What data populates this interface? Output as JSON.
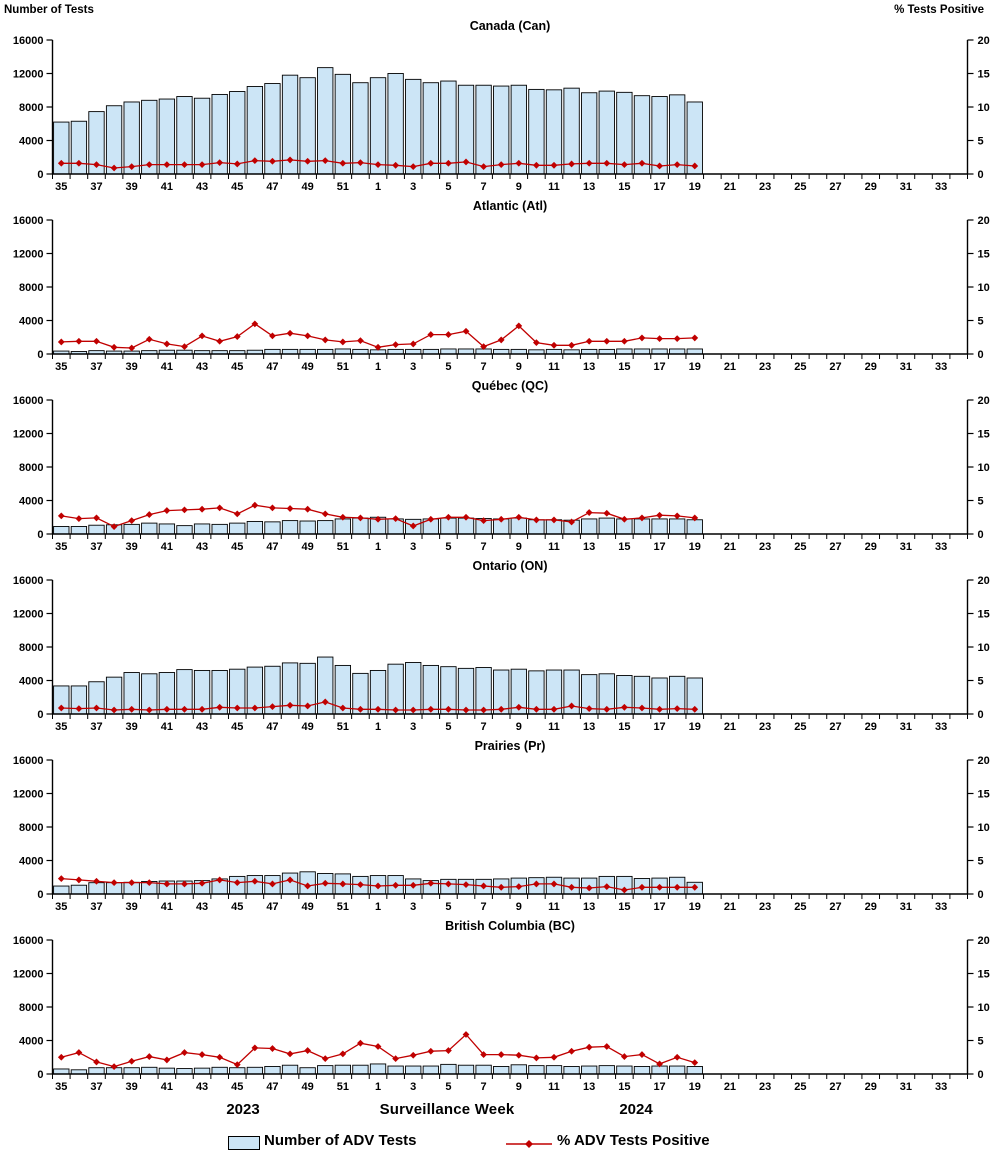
{
  "header": {
    "left_axis_title": "Number of Tests",
    "right_axis_title": "% Tests Positive"
  },
  "footer": {
    "year_left": "2023",
    "x_axis_title": "Surveillance Week",
    "year_right": "2024"
  },
  "legend": {
    "bar_label": "Number of ADV Tests",
    "line_label": "% ADV Tests Positive"
  },
  "colors": {
    "bar_fill": "#CCE5F6",
    "bar_border": "#000000",
    "line": "#C00000",
    "axis": "#000000",
    "text": "#000000"
  },
  "chart_data": {
    "type": "bar+line multi-panel",
    "x_axis_note": "Surveillance weeks 35-52 of 2023 followed by weeks 1-34 of 2024; data reported through 2024 week 19",
    "categories_weeks": [
      35,
      36,
      37,
      38,
      39,
      40,
      41,
      42,
      43,
      44,
      45,
      46,
      47,
      48,
      49,
      50,
      51,
      52,
      1,
      2,
      3,
      4,
      5,
      6,
      7,
      8,
      9,
      10,
      11,
      12,
      13,
      14,
      15,
      16,
      17,
      18,
      19,
      20,
      21,
      22,
      23,
      24,
      25,
      26,
      27,
      28,
      29,
      30,
      31,
      32,
      33,
      34
    ],
    "x_tick_labels": [
      35,
      37,
      39,
      41,
      43,
      45,
      47,
      49,
      51,
      1,
      3,
      5,
      7,
      9,
      11,
      13,
      15,
      17,
      19,
      21,
      23,
      25,
      27,
      29,
      31,
      33
    ],
    "left_axis": {
      "label": "Number of Tests",
      "min": 0,
      "max": 16000,
      "ticks": [
        0,
        4000,
        8000,
        12000,
        16000
      ]
    },
    "right_axis": {
      "label": "% Tests Positive",
      "min": 0,
      "max": 20,
      "ticks": [
        0,
        5,
        10,
        15,
        20
      ]
    },
    "series_names": [
      "Number of ADV Tests",
      "% ADV Tests Positive"
    ],
    "panels": [
      {
        "title": "Canada (Can)",
        "tests": [
          6200,
          6300,
          7450,
          8150,
          8600,
          8800,
          8950,
          9250,
          9050,
          9500,
          9850,
          10450,
          10800,
          11800,
          11500,
          12700,
          11900,
          10900,
          11500,
          12000,
          11300,
          10900,
          11100,
          10600,
          10600,
          10500,
          10600,
          10100,
          10050,
          10250,
          9700,
          9900,
          9750,
          9350,
          9250,
          9450,
          8600
        ],
        "pct_positive": [
          1.6,
          1.6,
          1.4,
          0.9,
          1.1,
          1.4,
          1.4,
          1.4,
          1.4,
          1.7,
          1.5,
          2.0,
          1.9,
          2.1,
          1.9,
          2.0,
          1.6,
          1.7,
          1.4,
          1.3,
          1.1,
          1.6,
          1.6,
          1.8,
          1.1,
          1.4,
          1.6,
          1.3,
          1.3,
          1.5,
          1.6,
          1.6,
          1.4,
          1.6,
          1.2,
          1.4,
          1.2
        ]
      },
      {
        "title": "Atlantic (Atl)",
        "tests": [
          350,
          300,
          400,
          350,
          350,
          400,
          450,
          450,
          400,
          400,
          400,
          450,
          550,
          550,
          550,
          550,
          600,
          550,
          500,
          550,
          550,
          550,
          600,
          600,
          600,
          550,
          550,
          500,
          550,
          500,
          550,
          550,
          600,
          600,
          600,
          600,
          600
        ],
        "pct_positive": [
          1.8,
          1.9,
          1.9,
          1.0,
          0.9,
          2.2,
          1.5,
          1.1,
          2.7,
          1.9,
          2.6,
          4.5,
          2.7,
          3.1,
          2.7,
          2.1,
          1.8,
          2.0,
          1.0,
          1.4,
          1.5,
          2.9,
          2.9,
          3.4,
          1.1,
          2.1,
          4.2,
          1.7,
          1.3,
          1.3,
          1.9,
          1.9,
          1.9,
          2.4,
          2.3,
          2.3,
          2.4
        ]
      },
      {
        "title": "Québec (QC)",
        "tests": [
          900,
          900,
          1050,
          1100,
          1150,
          1300,
          1200,
          1000,
          1200,
          1150,
          1300,
          1500,
          1450,
          1600,
          1550,
          1600,
          1800,
          1900,
          2000,
          1800,
          1750,
          1800,
          1900,
          1900,
          1850,
          1800,
          1900,
          1700,
          1700,
          1650,
          1800,
          1900,
          1800,
          1800,
          1800,
          1800,
          1700
        ],
        "pct_positive": [
          2.7,
          2.3,
          2.4,
          1.1,
          2.0,
          2.9,
          3.5,
          3.6,
          3.7,
          3.9,
          3.0,
          4.3,
          3.9,
          3.8,
          3.7,
          3.0,
          2.5,
          2.4,
          2.2,
          2.3,
          1.2,
          2.2,
          2.5,
          2.5,
          2.0,
          2.2,
          2.5,
          2.1,
          2.1,
          1.8,
          3.2,
          3.1,
          2.2,
          2.4,
          2.8,
          2.7,
          2.4
        ]
      },
      {
        "title": "Ontario (ON)",
        "tests": [
          3350,
          3350,
          3850,
          4400,
          4950,
          4800,
          4950,
          5300,
          5200,
          5200,
          5350,
          5600,
          5700,
          6100,
          6050,
          6800,
          5800,
          4850,
          5200,
          5950,
          6150,
          5800,
          5650,
          5450,
          5550,
          5250,
          5350,
          5150,
          5250,
          5250,
          4700,
          4800,
          4600,
          4500,
          4300,
          4500,
          4300
        ],
        "pct_positive": [
          0.9,
          0.8,
          0.9,
          0.6,
          0.7,
          0.6,
          0.7,
          0.7,
          0.7,
          1.0,
          0.9,
          0.9,
          1.1,
          1.3,
          1.2,
          1.8,
          0.9,
          0.7,
          0.7,
          0.6,
          0.6,
          0.7,
          0.7,
          0.6,
          0.6,
          0.7,
          1.0,
          0.7,
          0.7,
          1.2,
          0.8,
          0.7,
          1.0,
          0.9,
          0.7,
          0.8,
          0.7
        ]
      },
      {
        "title": "Prairies (Pr)",
        "tests": [
          950,
          1050,
          1350,
          1350,
          1400,
          1500,
          1550,
          1550,
          1600,
          1800,
          2100,
          2200,
          2200,
          2500,
          2650,
          2450,
          2400,
          2100,
          2200,
          2200,
          1800,
          1600,
          1750,
          1750,
          1750,
          1800,
          1900,
          1950,
          2000,
          1900,
          1900,
          2100,
          2100,
          1850,
          1900,
          2000,
          1400
        ],
        "pct_positive": [
          2.3,
          2.1,
          1.9,
          1.7,
          1.7,
          1.7,
          1.5,
          1.5,
          1.6,
          2.1,
          1.7,
          1.9,
          1.5,
          2.1,
          1.2,
          1.6,
          1.5,
          1.4,
          1.2,
          1.3,
          1.3,
          1.6,
          1.5,
          1.4,
          1.2,
          1.0,
          1.1,
          1.5,
          1.5,
          1.0,
          0.9,
          1.1,
          0.6,
          1.0,
          1.0,
          1.0,
          1.0
        ]
      },
      {
        "title": "British Columbia (BC)",
        "tests": [
          600,
          500,
          750,
          750,
          750,
          800,
          700,
          650,
          700,
          800,
          750,
          800,
          900,
          1050,
          750,
          1000,
          1050,
          1050,
          1200,
          950,
          950,
          950,
          1150,
          1050,
          1050,
          900,
          1100,
          1000,
          1000,
          900,
          950,
          1000,
          950,
          900,
          950,
          950,
          900
        ],
        "pct_positive": [
          2.5,
          3.2,
          1.8,
          1.1,
          1.9,
          2.6,
          2.1,
          3.2,
          2.9,
          2.5,
          1.4,
          3.9,
          3.8,
          3.0,
          3.5,
          2.3,
          3.0,
          4.6,
          4.1,
          2.3,
          2.8,
          3.4,
          3.5,
          5.9,
          2.9,
          2.9,
          2.8,
          2.4,
          2.5,
          3.4,
          4.0,
          4.1,
          2.6,
          2.9,
          1.5,
          2.5,
          1.7
        ]
      }
    ]
  }
}
